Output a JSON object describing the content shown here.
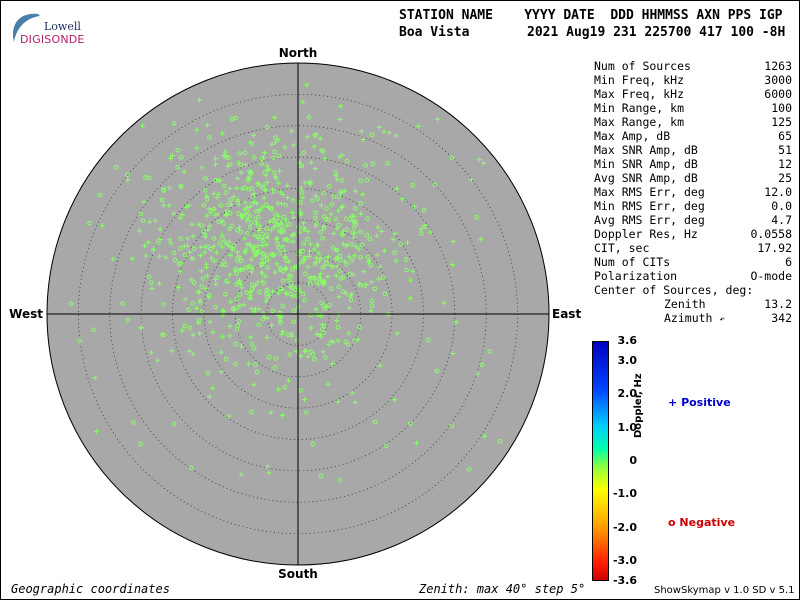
{
  "logo": {
    "top": "Lowell",
    "bottom": "DIGISONDE"
  },
  "header": {
    "row1": "STATION NAME    YYYY DATE  DDD HHMMSS AXN PPS IGP",
    "station": "Boa Vista",
    "date_values": "2021 Aug19 231 225700 417 100 -8H"
  },
  "stats": [
    {
      "label": "Num of Sources",
      "value": "1263"
    },
    {
      "label": "Min Freq, kHz",
      "value": "3000"
    },
    {
      "label": "Max Freq, kHz",
      "value": "6000"
    },
    {
      "label": "Min Range, km",
      "value": "100"
    },
    {
      "label": "Max Range, km",
      "value": "125"
    },
    {
      "label": "Max Amp, dB",
      "value": "65"
    },
    {
      "label": "Max SNR Amp, dB",
      "value": "51"
    },
    {
      "label": "Min SNR Amp, dB",
      "value": "12"
    },
    {
      "label": "Avg SNR Amp, dB",
      "value": "25"
    },
    {
      "label": "Max RMS Err, deg",
      "value": "12.0"
    },
    {
      "label": "Min RMS Err, deg",
      "value": "0.0"
    },
    {
      "label": "Avg RMS Err, deg",
      "value": "4.7"
    },
    {
      "label": "Doppler Res, Hz",
      "value": "0.0558"
    },
    {
      "label": "CIT, sec",
      "value": "17.92"
    },
    {
      "label": "Num of CITs",
      "value": "6"
    },
    {
      "label": "Polarization",
      "value": "O-mode"
    }
  ],
  "center": {
    "label": "Center of Sources, deg:",
    "zenith_label": "Zenith",
    "zenith_value": "13.2",
    "azimuth_label": "Azimuth",
    "azimuth_symbol": "↶",
    "azimuth_value": "342"
  },
  "directions": {
    "north": "North",
    "south": "South",
    "east": "East",
    "west": "West"
  },
  "colorbar": {
    "title": "Doppler, Hz",
    "ticks": [
      "3.6",
      "3.0",
      "2.0",
      "1.0",
      "0",
      "-1.0",
      "-2.0",
      "-3.0",
      "-3.6"
    ],
    "tick_values": [
      3.6,
      3.0,
      2.0,
      1.0,
      0,
      -1.0,
      -2.0,
      -3.0,
      -3.6
    ],
    "min": -3.6,
    "max": 3.6
  },
  "legend": {
    "positive_symbol": "+",
    "positive_label": "Positive",
    "positive_color": "#0000cc",
    "negative_symbol": "o",
    "negative_label": "Negative",
    "negative_color": "#cc0000"
  },
  "footer": {
    "left": "Geographic coordinates",
    "middle": "Zenith: max 40°  step 5°",
    "right": "ShowSkymap v 1.0   SD v 5.1"
  },
  "colors": {
    "plot_background": "#a8a8a8",
    "point_fill": "#88ff66"
  },
  "chart_data": {
    "type": "scatter",
    "coordinate_system": "polar (zenith angle, azimuth)",
    "zenith_max_deg": 40,
    "zenith_step_deg": 5,
    "num_sources": 1263,
    "center_of_sources": {
      "zenith_deg": 13.2,
      "azimuth_deg": 342
    },
    "cloud_summary": [
      {
        "polarity": "positive",
        "sample_points": [
          [
            13.2,
            342
          ],
          [
            10,
            0
          ],
          [
            8,
            330
          ],
          [
            15,
            350
          ],
          [
            18,
            20
          ],
          [
            6,
            10
          ],
          [
            20,
            345
          ],
          [
            12,
            300
          ],
          [
            22,
            5
          ],
          [
            5,
            200
          ],
          [
            25,
            40
          ],
          [
            14,
            320
          ],
          [
            9,
            30
          ],
          [
            16,
            355
          ],
          [
            28,
            335
          ],
          [
            30,
            15
          ],
          [
            4,
            90
          ],
          [
            3,
            270
          ],
          [
            11,
            60
          ],
          [
            19,
            310
          ]
        ]
      },
      {
        "polarity": "negative",
        "sample_points": [
          [
            13.2,
            342
          ],
          [
            17,
            330
          ],
          [
            21,
            350
          ],
          [
            24,
            10
          ],
          [
            12,
            310
          ],
          [
            27,
            345
          ],
          [
            8,
            0
          ],
          [
            32,
            355
          ],
          [
            26,
            320
          ],
          [
            15,
            20
          ],
          [
            33,
            330
          ],
          [
            10,
            340
          ]
        ]
      }
    ]
  }
}
